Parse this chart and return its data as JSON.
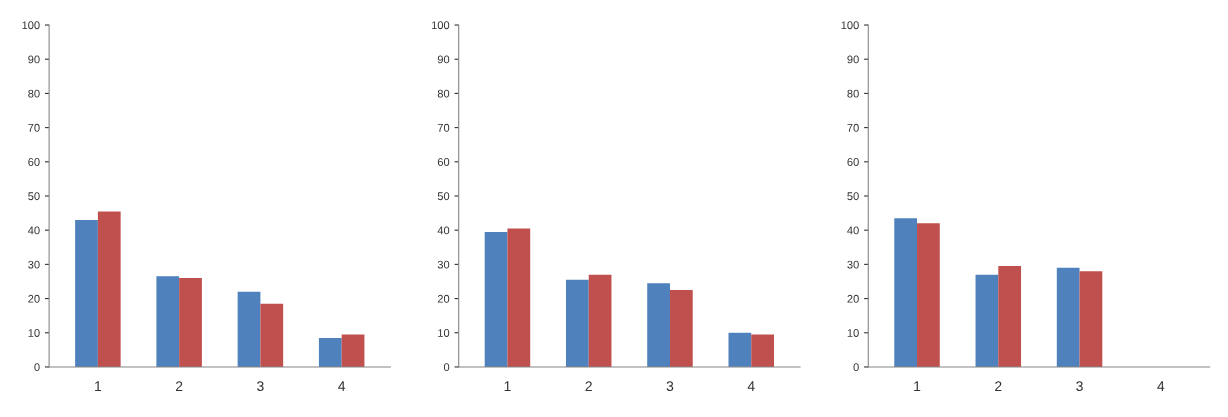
{
  "chart_data": [
    {
      "type": "bar",
      "categories": [
        "1",
        "2",
        "3",
        "4"
      ],
      "ylim": [
        0,
        100
      ],
      "yticks": [
        0,
        10,
        20,
        30,
        40,
        50,
        60,
        70,
        80,
        90,
        100
      ],
      "grid": false,
      "legend": false,
      "series": [
        {
          "color": "#4f81bd",
          "values": [
            43,
            26.5,
            22,
            8.5
          ]
        },
        {
          "color": "#c0504d",
          "values": [
            45.5,
            26,
            18.5,
            9.5
          ]
        }
      ]
    },
    {
      "type": "bar",
      "categories": [
        "1",
        "2",
        "3",
        "4"
      ],
      "ylim": [
        0,
        100
      ],
      "yticks": [
        0,
        10,
        20,
        30,
        40,
        50,
        60,
        70,
        80,
        90,
        100
      ],
      "grid": false,
      "legend": false,
      "series": [
        {
          "color": "#4f81bd",
          "values": [
            39.5,
            25.5,
            24.5,
            10
          ]
        },
        {
          "color": "#c0504d",
          "values": [
            40.5,
            27,
            22.5,
            9.5
          ]
        }
      ]
    },
    {
      "type": "bar",
      "categories": [
        "1",
        "2",
        "3",
        "4"
      ],
      "ylim": [
        0,
        100
      ],
      "yticks": [
        0,
        10,
        20,
        30,
        40,
        50,
        60,
        70,
        80,
        90,
        100
      ],
      "grid": false,
      "legend": false,
      "series": [
        {
          "color": "#4f81bd",
          "values": [
            43.5,
            27,
            29,
            null
          ]
        },
        {
          "color": "#c0504d",
          "values": [
            42,
            29.5,
            28,
            null
          ]
        }
      ]
    }
  ]
}
